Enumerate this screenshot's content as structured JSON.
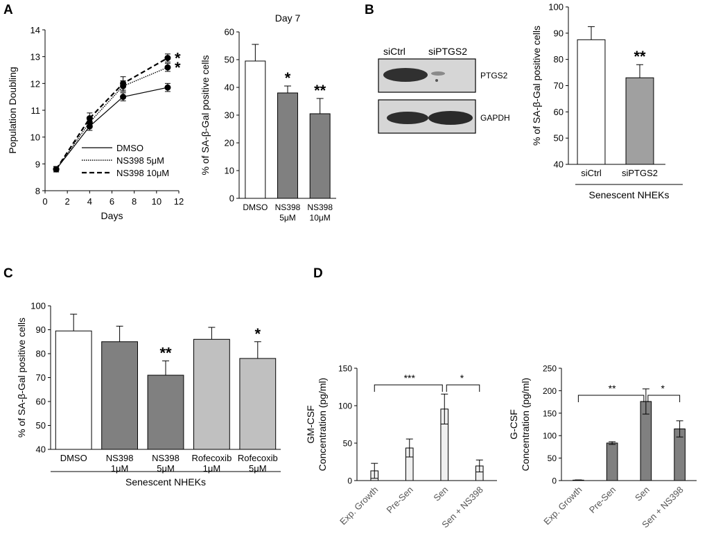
{
  "panel_letters": [
    "A",
    "B",
    "C",
    "D"
  ],
  "chart_data": [
    {
      "id": "A-line",
      "type": "line",
      "xlabel": "Days",
      "ylabel": "Population Doubling",
      "xlim": [
        0,
        12
      ],
      "ylim": [
        8,
        14
      ],
      "xticks": [
        "0",
        "2",
        "4",
        "6",
        "8",
        "10",
        "12"
      ],
      "yticks": [
        "8",
        "9",
        "10",
        "11",
        "12",
        "13",
        "14"
      ],
      "legend_position": "lower-center",
      "series": [
        {
          "name": "DMSO",
          "dash": "solid",
          "x": [
            1,
            4,
            7,
            11
          ],
          "y": [
            8.8,
            10.4,
            11.5,
            11.85
          ],
          "err": [
            0.1,
            0.15,
            0.15,
            0.15
          ]
        },
        {
          "name": "NS398 5μM",
          "dash": "dotted",
          "x": [
            1,
            4,
            7,
            11
          ],
          "y": [
            8.8,
            10.55,
            11.9,
            12.6
          ],
          "err": [
            0.1,
            0.2,
            0.2,
            0.15
          ]
        },
        {
          "name": "NS398 10μM",
          "dash": "dashed",
          "x": [
            1,
            4,
            7,
            11
          ],
          "y": [
            8.8,
            10.7,
            12.0,
            12.95
          ],
          "err": [
            0.1,
            0.2,
            0.25,
            0.15
          ]
        }
      ],
      "annotations": [
        "*",
        "*"
      ]
    },
    {
      "id": "A-bar",
      "type": "bar",
      "title": "Day 7",
      "ylabel": "% of SA-β-Gal positive cells",
      "ylim": [
        0,
        60
      ],
      "yticks": [
        "0",
        "10",
        "20",
        "30",
        "40",
        "50",
        "60"
      ],
      "categories": [
        [
          "DMSO"
        ],
        [
          "NS398",
          "5μM"
        ],
        [
          "NS398",
          "10μM"
        ]
      ],
      "values": [
        49.5,
        38,
        30.5
      ],
      "errors": [
        6,
        2.5,
        5.5
      ],
      "colors": [
        "#ffffff",
        "#808080",
        "#808080"
      ],
      "significance": [
        "",
        "*",
        "**"
      ]
    },
    {
      "id": "B-bar",
      "type": "bar",
      "ylabel": "% of SA-β-Gal positive cells",
      "ylim": [
        40,
        100
      ],
      "yticks": [
        "40",
        "50",
        "60",
        "70",
        "80",
        "90",
        "100"
      ],
      "categories": [
        [
          "siCtrl"
        ],
        [
          "siPTGS2"
        ]
      ],
      "values": [
        87.5,
        73
      ],
      "errors": [
        5,
        5
      ],
      "colors": [
        "#ffffff",
        "#a0a0a0"
      ],
      "significance": [
        "",
        "**"
      ],
      "group_label": "Senescent NHEKs"
    },
    {
      "id": "C-bar",
      "type": "bar",
      "ylabel": "% of SA-β-Gal positive cells",
      "ylim": [
        40,
        100
      ],
      "yticks": [
        "40",
        "50",
        "60",
        "70",
        "80",
        "90",
        "100"
      ],
      "categories": [
        [
          "DMSO"
        ],
        [
          "NS398",
          "1μM"
        ],
        [
          "NS398",
          "5μM"
        ],
        [
          "Rofecoxib",
          "1μM"
        ],
        [
          "Rofecoxib",
          "5μM"
        ]
      ],
      "values": [
        89.5,
        85,
        71,
        86,
        78
      ],
      "errors": [
        7,
        6.5,
        6,
        5,
        7
      ],
      "colors": [
        "#ffffff",
        "#808080",
        "#808080",
        "#c0c0c0",
        "#c0c0c0"
      ],
      "significance": [
        "",
        "",
        "**",
        "",
        "*"
      ],
      "group_label": "Senescent NHEKs"
    },
    {
      "id": "D-gmcsf",
      "type": "bar",
      "ylabel": [
        "GM-CSF",
        "Concentration (pg/ml)"
      ],
      "ylim": [
        0,
        150
      ],
      "yticks": [
        "0",
        "50",
        "100",
        "150"
      ],
      "categories": [
        "Exp. Growth",
        "Pre-Sen",
        "Sen",
        "Sen + NS398"
      ],
      "values": [
        13,
        43.5,
        95.5,
        19.5
      ],
      "errors": [
        10,
        12,
        20,
        8
      ],
      "colors": [
        "#f0f0f0",
        "#f0f0f0",
        "#f0f0f0",
        "#f0f0f0"
      ],
      "brackets": [
        {
          "from": 0,
          "to": 2,
          "label": "***"
        },
        {
          "from": 2,
          "to": 3,
          "label": "*"
        }
      ]
    },
    {
      "id": "D-gcsf",
      "type": "bar",
      "ylabel": [
        "G-CSF",
        "Concentration (pg/ml)"
      ],
      "ylim": [
        0,
        250
      ],
      "yticks": [
        "0",
        "50",
        "100",
        "150",
        "200",
        "250"
      ],
      "categories": [
        "Exp. Growth",
        "Pre-Sen",
        "Sen",
        "Sen + NS398"
      ],
      "values": [
        1,
        83.5,
        176,
        115
      ],
      "errors": [
        0.5,
        3,
        28,
        18
      ],
      "colors": [
        "#808080",
        "#808080",
        "#808080",
        "#808080"
      ],
      "brackets": [
        {
          "from": 0,
          "to": 2,
          "label": "**"
        },
        {
          "from": 2,
          "to": 3,
          "label": "*"
        }
      ]
    }
  ],
  "blot": {
    "lanes": [
      "siCtrl",
      "siPTGS2"
    ],
    "rows": [
      "PTGS2",
      "GAPDH"
    ]
  }
}
